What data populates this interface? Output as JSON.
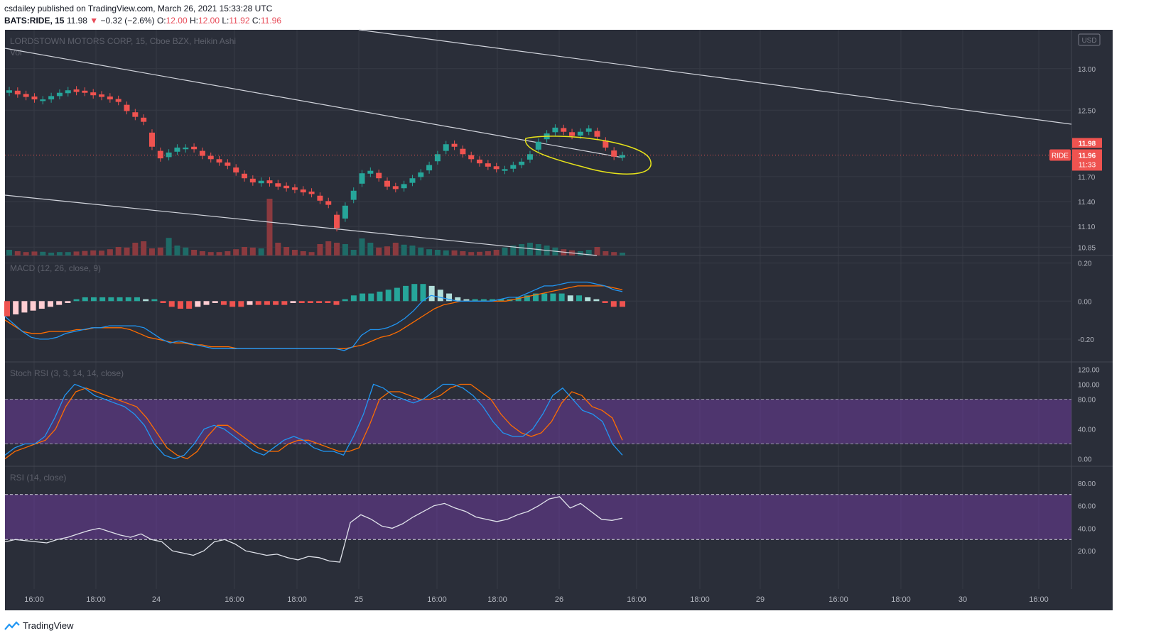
{
  "header": {
    "publisher": "csdailey published on TradingView.com, March 26, 2021 15:33:28 UTC",
    "symbol": "BATS:RIDE, 15",
    "last": "11.98",
    "change": "−0.32 (−2.6%)",
    "o_label": "O:",
    "o": "12.00",
    "h_label": "H:",
    "h": "12.00",
    "l_label": "L:",
    "l": "11.92",
    "c_label": "C:",
    "c": "11.96"
  },
  "footer": {
    "brand": "TradingView"
  },
  "colors": {
    "bg": "#2a2e39",
    "grid": "#363a45",
    "up": "#26a69a",
    "down": "#ef5350",
    "macd": "#2196f3",
    "signal": "#ff6d00",
    "band": "#7b3fb0",
    "ann": "#e7e31a"
  },
  "chart_data": {
    "type": "candlestick",
    "title": "LORDSTOWN MOTORS CORP, 15, Cboe BZX, Heikin Ashi",
    "volume_label": "Vol",
    "currency": "USD",
    "x_ticks": [
      "16:00",
      "18:00",
      "24",
      "16:00",
      "18:00",
      "25",
      "16:00",
      "18:00",
      "26",
      "16:00",
      "18:00",
      "29",
      "16:00",
      "18:00",
      "30",
      "16:00"
    ],
    "price_ticks": [
      "13.00",
      "12.50",
      "11.70",
      "11.40",
      "11.10",
      "10.85"
    ],
    "price_badges": {
      "last": "11.98",
      "symbol": "RIDE",
      "close": "11.96",
      "countdown": "11:33"
    },
    "closes": [
      12.74,
      12.69,
      12.66,
      12.63,
      12.63,
      12.67,
      12.71,
      12.74,
      12.72,
      12.71,
      12.68,
      12.66,
      12.63,
      12.6,
      12.49,
      12.42,
      12.36,
      12.06,
      11.92,
      11.99,
      12.05,
      12.05,
      12.03,
      11.95,
      11.91,
      11.87,
      11.83,
      11.75,
      11.68,
      11.63,
      11.65,
      11.62,
      11.58,
      11.56,
      11.54,
      11.51,
      11.49,
      11.41,
      11.36,
      11.08,
      11.35,
      11.53,
      11.74,
      11.77,
      11.68,
      11.58,
      11.55,
      11.61,
      11.68,
      11.75,
      11.84,
      11.97,
      12.09,
      12.06,
      11.97,
      11.91,
      11.86,
      11.82,
      11.79,
      11.79,
      11.84,
      11.88,
      11.97,
      12.12,
      12.22,
      12.29,
      12.24,
      12.19,
      12.24,
      12.28,
      12.18,
      12.05,
      11.94,
      11.96
    ],
    "volume": [
      20,
      15,
      12,
      14,
      13,
      10,
      12,
      12,
      14,
      16,
      18,
      17,
      22,
      30,
      28,
      45,
      50,
      25,
      28,
      62,
      35,
      28,
      20,
      15,
      12,
      12,
      15,
      22,
      30,
      28,
      25,
      200,
      45,
      30,
      20,
      15,
      12,
      40,
      50,
      45,
      40,
      20,
      60,
      45,
      28,
      32,
      45,
      38,
      35,
      28,
      22,
      20,
      18,
      18,
      15,
      12,
      13,
      15,
      20,
      28,
      35,
      40,
      45,
      40,
      35,
      28,
      22,
      18,
      15,
      20,
      30,
      15,
      12,
      10
    ],
    "panes": [
      {
        "label": "MACD (12, 26, close, 9)",
        "ticks": [
          "0.20",
          "0.00",
          "-0.20"
        ],
        "macd": [
          -0.08,
          -0.12,
          -0.16,
          -0.19,
          -0.2,
          -0.2,
          -0.19,
          -0.17,
          -0.16,
          -0.15,
          -0.14,
          -0.14,
          -0.13,
          -0.13,
          -0.13,
          -0.13,
          -0.14,
          -0.17,
          -0.2,
          -0.22,
          -0.21,
          -0.22,
          -0.23,
          -0.24,
          -0.25,
          -0.25,
          -0.25,
          -0.25,
          -0.25,
          -0.25,
          -0.25,
          -0.25,
          -0.25,
          -0.25,
          -0.25,
          -0.25,
          -0.25,
          -0.25,
          -0.25,
          -0.26,
          -0.24,
          -0.18,
          -0.15,
          -0.15,
          -0.14,
          -0.12,
          -0.09,
          -0.05,
          0.0,
          0.03,
          0.02,
          0.01,
          0.0,
          0.0,
          0.0,
          0.0,
          0.0,
          0.01,
          0.02,
          0.02,
          0.04,
          0.06,
          0.08,
          0.08,
          0.09,
          0.1,
          0.1,
          0.1,
          0.09,
          0.08,
          0.06,
          0.05
        ],
        "signal": [
          -0.1,
          -0.13,
          -0.16,
          -0.17,
          -0.17,
          -0.16,
          -0.16,
          -0.16,
          -0.15,
          -0.15,
          -0.14,
          -0.14,
          -0.14,
          -0.14,
          -0.15,
          -0.17,
          -0.19,
          -0.2,
          -0.21,
          -0.22,
          -0.22,
          -0.23,
          -0.23,
          -0.24,
          -0.24,
          -0.24,
          -0.25,
          -0.25,
          -0.25,
          -0.25,
          -0.25,
          -0.25,
          -0.25,
          -0.25,
          -0.25,
          -0.25,
          -0.25,
          -0.25,
          -0.25,
          -0.24,
          -0.23,
          -0.21,
          -0.19,
          -0.18,
          -0.16,
          -0.13,
          -0.1,
          -0.07,
          -0.04,
          -0.02,
          -0.01,
          0.0,
          0.0,
          0.0,
          0.0,
          0.0,
          0.0,
          0.01,
          0.02,
          0.03,
          0.04,
          0.05,
          0.06,
          0.07,
          0.08,
          0.08,
          0.08,
          0.08,
          0.07,
          0.06
        ],
        "hist": [
          -0.08,
          -0.07,
          -0.06,
          -0.05,
          -0.04,
          -0.03,
          -0.02,
          -0.01,
          0.01,
          0.02,
          0.02,
          0.02,
          0.02,
          0.02,
          0.02,
          0.02,
          0.01,
          0.01,
          -0.01,
          -0.03,
          -0.04,
          -0.04,
          -0.03,
          -0.02,
          -0.01,
          -0.02,
          -0.03,
          -0.03,
          -0.02,
          -0.02,
          -0.02,
          -0.02,
          -0.02,
          -0.01,
          -0.01,
          -0.01,
          -0.01,
          -0.01,
          -0.02,
          0.01,
          0.03,
          0.04,
          0.04,
          0.05,
          0.06,
          0.07,
          0.08,
          0.09,
          0.09,
          0.08,
          0.06,
          0.04,
          0.02,
          0.01,
          0.01,
          0.01,
          0.01,
          0.01,
          0.01,
          0.02,
          0.03,
          0.04,
          0.04,
          0.04,
          0.04,
          0.03,
          0.03,
          0.02,
          0.01,
          -0.01,
          -0.03,
          -0.03
        ]
      },
      {
        "label": "Stoch RSI (3, 3, 14, 14, close)",
        "ticks": [
          "120.00",
          "100.00",
          "80.00",
          "40.00",
          "0.00"
        ],
        "k": [
          5,
          15,
          20,
          20,
          30,
          55,
          85,
          100,
          95,
          85,
          80,
          75,
          70,
          60,
          45,
          20,
          5,
          0,
          5,
          20,
          40,
          45,
          40,
          30,
          20,
          10,
          5,
          15,
          25,
          30,
          25,
          15,
          10,
          10,
          5,
          30,
          60,
          100,
          95,
          85,
          80,
          75,
          80,
          90,
          100,
          100,
          95,
          85,
          70,
          50,
          35,
          30,
          30,
          40,
          60,
          85,
          95,
          80,
          65,
          60,
          50,
          20,
          5
        ],
        "d": [
          0,
          10,
          15,
          20,
          25,
          40,
          70,
          90,
          95,
          90,
          85,
          80,
          75,
          70,
          55,
          35,
          15,
          5,
          0,
          10,
          30,
          45,
          45,
          35,
          25,
          15,
          10,
          10,
          20,
          25,
          25,
          20,
          15,
          10,
          10,
          15,
          45,
          80,
          90,
          90,
          85,
          80,
          80,
          85,
          95,
          100,
          100,
          90,
          80,
          60,
          45,
          35,
          30,
          35,
          50,
          75,
          90,
          85,
          70,
          65,
          55,
          25
        ]
      },
      {
        "label": "RSI (14, close)",
        "ticks": [
          "80.00",
          "60.00",
          "40.00",
          "20.00"
        ],
        "rsi": [
          28,
          30,
          29,
          28,
          27,
          30,
          32,
          35,
          38,
          40,
          37,
          34,
          32,
          35,
          30,
          28,
          20,
          18,
          16,
          20,
          28,
          30,
          26,
          20,
          18,
          16,
          17,
          14,
          12,
          15,
          14,
          11,
          10,
          45,
          52,
          48,
          42,
          40,
          44,
          50,
          55,
          60,
          62,
          58,
          55,
          50,
          48,
          46,
          48,
          52,
          55,
          60,
          66,
          68,
          58,
          62,
          55,
          48,
          47,
          49
        ]
      }
    ]
  }
}
